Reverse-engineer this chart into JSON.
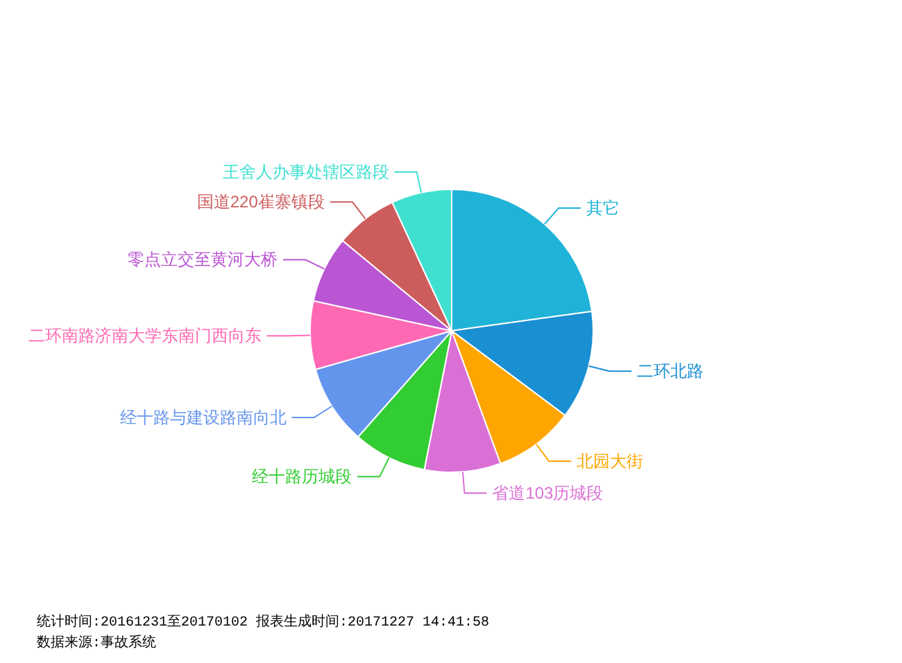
{
  "chart_data": {
    "type": "pie",
    "categories": [
      "其它",
      "二环北路",
      "北园大街",
      "省道103历城段",
      "经十路历城段",
      "经十路与建设路南向北",
      "二环南路济南大学东南门西向东",
      "零点立交至黄河大桥",
      "国道220崔寨镇段",
      "王舍人办事处辖区路段"
    ],
    "values": [
      22.8,
      12.4,
      9.2,
      8.7,
      8.4,
      9.1,
      7.8,
      7.6,
      7.1,
      6.9
    ],
    "colors": [
      "#1fb3d8",
      "#1a8fd2",
      "#ffa500",
      "#da70d6",
      "#32cd32",
      "#6495ed",
      "#ff69b4",
      "#ba55d3",
      "#cd5c5c",
      "#40e0d0"
    ],
    "annotations": [
      "统计时间:20161231至20170102 报表生成时间:20171227 14:41:58",
      "数据来源:事故系统"
    ]
  }
}
